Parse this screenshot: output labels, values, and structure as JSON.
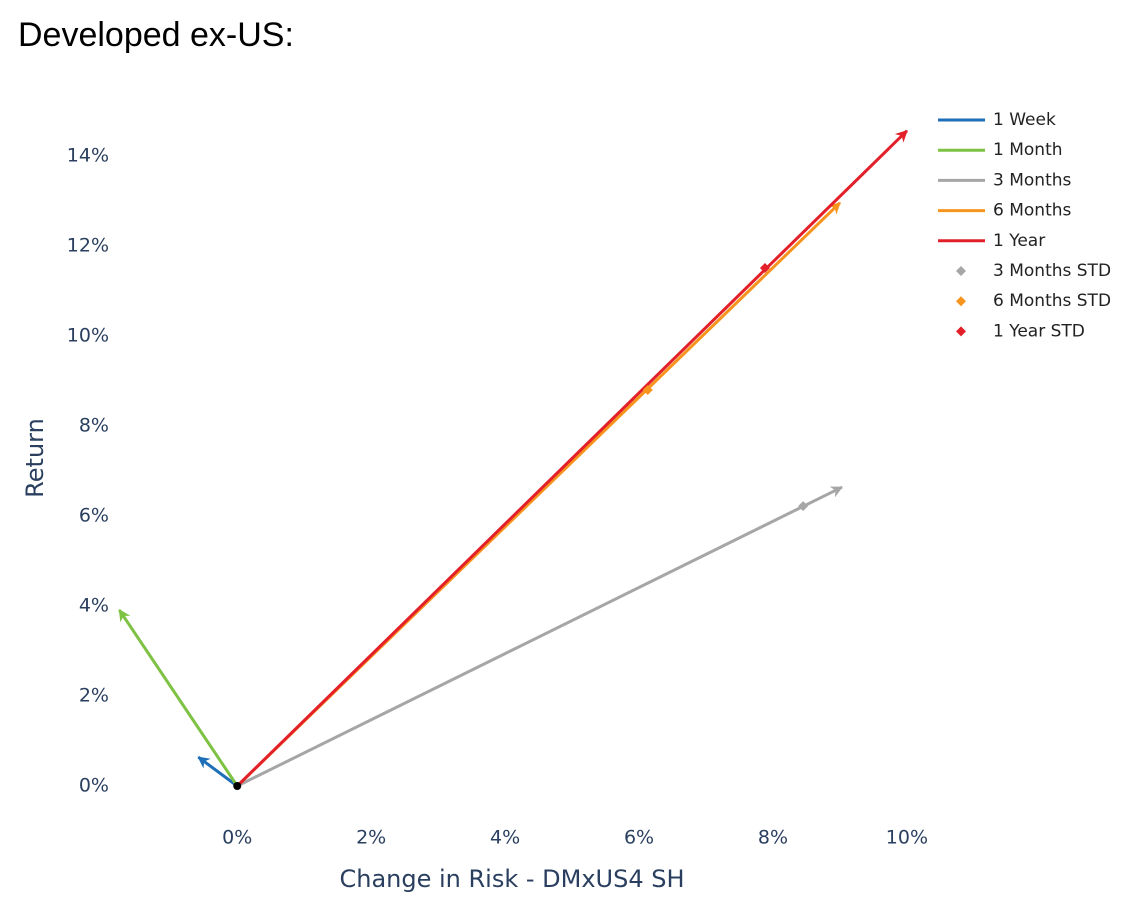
{
  "chart_data": {
    "type": "vector",
    "title": "Developed ex-US:",
    "x_label": "Change in Risk - DMxUS4 SH",
    "y_label": "Return",
    "xlim": [
      -1.9,
      10.3
    ],
    "ylim": [
      -0.8,
      14.8
    ],
    "xticks": [
      {
        "value": 0,
        "label": "0%"
      },
      {
        "value": 2,
        "label": "2%"
      },
      {
        "value": 4,
        "label": "4%"
      },
      {
        "value": 6,
        "label": "6%"
      },
      {
        "value": 8,
        "label": "8%"
      },
      {
        "value": 10,
        "label": "10%"
      }
    ],
    "yticks": [
      {
        "value": 0,
        "label": "0%"
      },
      {
        "value": 2,
        "label": "2%"
      },
      {
        "value": 4,
        "label": "4%"
      },
      {
        "value": 6,
        "label": "6%"
      },
      {
        "value": 8,
        "label": "8%"
      },
      {
        "value": 10,
        "label": "10%"
      },
      {
        "value": 12,
        "label": "12%"
      },
      {
        "value": 14,
        "label": "14%"
      }
    ],
    "legend": "top-right",
    "series": [
      {
        "name": "1 Week",
        "mode": "lines",
        "color": "#1f6fb8",
        "x": [
          0,
          -0.58
        ],
        "values": [
          0,
          0.64
        ]
      },
      {
        "name": "1 Month",
        "mode": "lines",
        "color": "#7dc242",
        "x": [
          0,
          -1.76
        ],
        "values": [
          0,
          3.91
        ]
      },
      {
        "name": "3 Months",
        "mode": "lines",
        "color": "#a6a6a6",
        "x": [
          0,
          9.03
        ],
        "values": [
          0,
          6.64
        ]
      },
      {
        "name": "6 Months",
        "mode": "lines",
        "color": "#f7941d",
        "x": [
          0,
          9.0
        ],
        "values": [
          0,
          12.96
        ]
      },
      {
        "name": "1 Year",
        "mode": "lines",
        "color": "#e3202a",
        "x": [
          0,
          10.0
        ],
        "values": [
          0,
          14.56
        ]
      },
      {
        "name": "3 Months STD",
        "mode": "markers",
        "color": "#a6a6a6",
        "x": [
          8.45
        ],
        "values": [
          6.22
        ]
      },
      {
        "name": "6 Months STD",
        "mode": "markers",
        "color": "#f7941d",
        "x": [
          6.13
        ],
        "values": [
          8.8
        ]
      },
      {
        "name": "1 Year STD",
        "mode": "markers",
        "color": "#e3202a",
        "x": [
          7.88
        ],
        "values": [
          11.51
        ]
      }
    ]
  }
}
